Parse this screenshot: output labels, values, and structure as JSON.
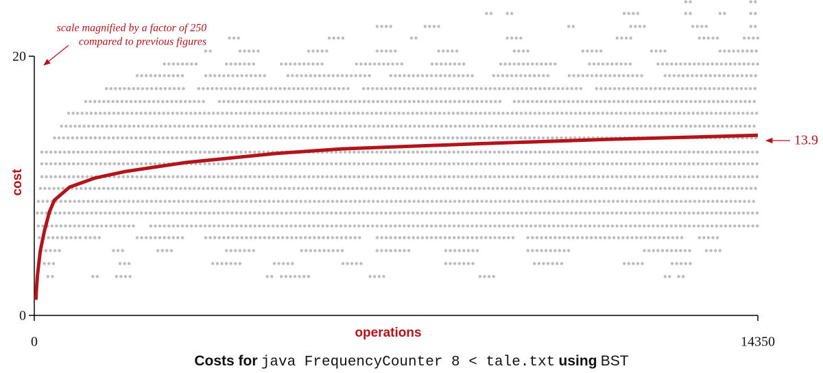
{
  "chart_data": {
    "type": "scatter",
    "title_parts": [
      "Costs for",
      "java FrequencyCounter 8 < tale.txt",
      "using",
      "BST"
    ],
    "xlabel": "operations",
    "ylabel": "cost",
    "annotation": [
      "scale magnified by a factor of 250",
      "compared to previous figures"
    ],
    "end_label": "13.9",
    "xlim": [
      0,
      14350
    ],
    "xticks": [
      0,
      14350
    ],
    "ylim": [
      0,
      20
    ],
    "yticks": [
      0,
      20
    ],
    "dot_color": "#bdbdbd",
    "avg_color": "#b3141c",
    "rows": [
      {
        "cost": 3.0,
        "runs": [
          [
            270,
            410
          ],
          [
            1160,
            1290
          ],
          [
            1630,
            1970
          ],
          [
            4620,
            4760
          ],
          [
            4900,
            5440
          ],
          [
            6660,
            6940
          ],
          [
            8840,
            9110
          ],
          [
            12510,
            12650
          ],
          [
            12780,
            12920
          ]
        ]
      },
      {
        "cost": 4.0,
        "runs": [
          [
            200,
            410
          ],
          [
            1700,
            1900
          ],
          [
            3540,
            4080
          ],
          [
            4760,
            5170
          ],
          [
            6120,
            6530
          ],
          [
            8160,
            8700
          ],
          [
            9920,
            10470
          ],
          [
            11700,
            12100
          ],
          [
            12650,
            13060
          ]
        ]
      },
      {
        "cost": 5.0,
        "runs": [
          [
            140,
            540
          ],
          [
            1570,
            1770
          ],
          [
            2450,
            2720
          ],
          [
            3810,
            4350
          ],
          [
            5300,
            6120
          ],
          [
            6800,
            7480
          ],
          [
            8160,
            8840
          ],
          [
            9790,
            10600
          ],
          [
            12100,
            13060
          ],
          [
            13330,
            13600
          ]
        ]
      },
      {
        "cost": 6.0,
        "runs": [
          [
            100,
            950
          ],
          [
            1020,
            1360
          ],
          [
            2040,
            2990
          ],
          [
            3400,
            6530
          ],
          [
            6800,
            9520
          ],
          [
            9790,
            12920
          ],
          [
            13190,
            13600
          ]
        ]
      },
      {
        "cost": 6.9,
        "runs": [
          [
            80,
            2040
          ],
          [
            2310,
            14350
          ]
        ]
      },
      {
        "cost": 7.9,
        "runs": [
          [
            60,
            14350
          ]
        ]
      },
      {
        "cost": 8.8,
        "runs": [
          [
            80,
            14350
          ]
        ]
      },
      {
        "cost": 9.8,
        "runs": [
          [
            120,
            14350
          ]
        ]
      },
      {
        "cost": 10.7,
        "runs": [
          [
            150,
            14350
          ]
        ]
      },
      {
        "cost": 11.7,
        "runs": [
          [
            150,
            14350
          ]
        ]
      },
      {
        "cost": 12.6,
        "runs": [
          [
            150,
            14350
          ]
        ]
      },
      {
        "cost": 13.7,
        "runs": [
          [
            400,
            14350
          ]
        ]
      },
      {
        "cost": 14.6,
        "runs": [
          [
            540,
            14350
          ]
        ]
      },
      {
        "cost": 15.6,
        "runs": [
          [
            680,
            14350
          ]
        ]
      },
      {
        "cost": 16.5,
        "runs": [
          [
            1020,
            3400
          ],
          [
            3670,
            9250
          ],
          [
            9520,
            14350
          ]
        ]
      },
      {
        "cost": 17.5,
        "runs": [
          [
            1430,
            2990
          ],
          [
            3260,
            6250
          ],
          [
            6530,
            10880
          ],
          [
            11150,
            14350
          ]
        ]
      },
      {
        "cost": 18.5,
        "runs": [
          [
            2040,
            2990
          ],
          [
            3400,
            4620
          ],
          [
            5030,
            6660
          ],
          [
            7070,
            8700
          ],
          [
            9110,
            10200
          ],
          [
            10610,
            12100
          ],
          [
            12510,
            14350
          ]
        ]
      },
      {
        "cost": 19.4,
        "runs": [
          [
            2580,
            3260
          ],
          [
            3810,
            4350
          ],
          [
            4900,
            5710
          ],
          [
            6390,
            7340
          ],
          [
            7890,
            8560
          ],
          [
            9250,
            10330
          ],
          [
            11010,
            11830
          ],
          [
            12370,
            14350
          ]
        ]
      },
      {
        "cost": 20.4,
        "runs": [
          [
            3400,
            3540
          ],
          [
            4080,
            4480
          ],
          [
            5440,
            5850
          ],
          [
            6800,
            7200
          ],
          [
            8020,
            8430
          ],
          [
            9520,
            9790
          ],
          [
            10880,
            11280
          ],
          [
            12240,
            12510
          ],
          [
            13600,
            14350
          ]
        ]
      },
      {
        "cost": 21.4,
        "runs": [
          [
            3870,
            4080
          ],
          [
            5850,
            6120
          ],
          [
            7480,
            7620
          ],
          [
            9380,
            9650
          ],
          [
            11560,
            11830
          ],
          [
            13190,
            13600
          ],
          [
            14080,
            14350
          ]
        ]
      },
      {
        "cost": 22.3,
        "runs": [
          [
            6800,
            7070
          ],
          [
            7750,
            8020
          ],
          [
            10600,
            10740
          ],
          [
            11830,
            12100
          ],
          [
            13060,
            13330
          ],
          [
            14210,
            14350
          ]
        ]
      },
      {
        "cost": 23.3,
        "runs": [
          [
            8970,
            9110
          ],
          [
            9380,
            9520
          ],
          [
            11700,
            11970
          ],
          [
            12920,
            13060
          ],
          [
            13600,
            13740
          ],
          [
            14210,
            14350
          ]
        ]
      },
      {
        "cost": 24.2,
        "runs": [
          [
            12920,
            13060
          ],
          [
            14210,
            14350
          ]
        ]
      }
    ],
    "avg": {
      "name": "average",
      "x": [
        30,
        60,
        120,
        200,
        300,
        400,
        700,
        1200,
        1800,
        3000,
        4800,
        6100,
        8800,
        11500,
        14350
      ],
      "values": [
        1.2,
        3,
        5,
        6.5,
        8,
        8.9,
        9.9,
        10.6,
        11.1,
        11.8,
        12.5,
        12.85,
        13.25,
        13.6,
        13.9
      ]
    }
  }
}
